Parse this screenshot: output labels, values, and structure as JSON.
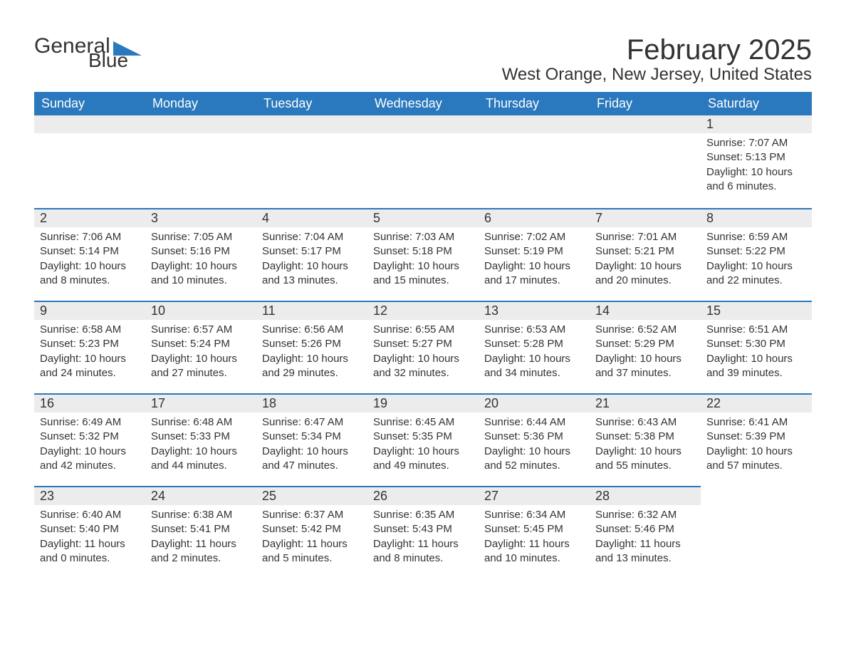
{
  "logo": {
    "word1": "General",
    "word2": "Blue"
  },
  "title": "February 2025",
  "location": "West Orange, New Jersey, United States",
  "colors": {
    "header_bg": "#2a78bd",
    "header_text": "#ffffff",
    "daynum_bg": "#ececec",
    "daynum_border": "#2a78bd",
    "body_text": "#333333",
    "page_bg": "#ffffff"
  },
  "font": {
    "family": "Arial",
    "title_size_pt": 30,
    "location_size_pt": 18,
    "header_size_pt": 14,
    "daynum_size_pt": 14,
    "body_size_pt": 11
  },
  "layout": {
    "columns": 7,
    "rows": 5,
    "first_day_column_index": 6
  },
  "weekdays": [
    "Sunday",
    "Monday",
    "Tuesday",
    "Wednesday",
    "Thursday",
    "Friday",
    "Saturday"
  ],
  "days": [
    {
      "n": 1,
      "sunrise": "7:07 AM",
      "sunset": "5:13 PM",
      "daylight": "10 hours and 6 minutes."
    },
    {
      "n": 2,
      "sunrise": "7:06 AM",
      "sunset": "5:14 PM",
      "daylight": "10 hours and 8 minutes."
    },
    {
      "n": 3,
      "sunrise": "7:05 AM",
      "sunset": "5:16 PM",
      "daylight": "10 hours and 10 minutes."
    },
    {
      "n": 4,
      "sunrise": "7:04 AM",
      "sunset": "5:17 PM",
      "daylight": "10 hours and 13 minutes."
    },
    {
      "n": 5,
      "sunrise": "7:03 AM",
      "sunset": "5:18 PM",
      "daylight": "10 hours and 15 minutes."
    },
    {
      "n": 6,
      "sunrise": "7:02 AM",
      "sunset": "5:19 PM",
      "daylight": "10 hours and 17 minutes."
    },
    {
      "n": 7,
      "sunrise": "7:01 AM",
      "sunset": "5:21 PM",
      "daylight": "10 hours and 20 minutes."
    },
    {
      "n": 8,
      "sunrise": "6:59 AM",
      "sunset": "5:22 PM",
      "daylight": "10 hours and 22 minutes."
    },
    {
      "n": 9,
      "sunrise": "6:58 AM",
      "sunset": "5:23 PM",
      "daylight": "10 hours and 24 minutes."
    },
    {
      "n": 10,
      "sunrise": "6:57 AM",
      "sunset": "5:24 PM",
      "daylight": "10 hours and 27 minutes."
    },
    {
      "n": 11,
      "sunrise": "6:56 AM",
      "sunset": "5:26 PM",
      "daylight": "10 hours and 29 minutes."
    },
    {
      "n": 12,
      "sunrise": "6:55 AM",
      "sunset": "5:27 PM",
      "daylight": "10 hours and 32 minutes."
    },
    {
      "n": 13,
      "sunrise": "6:53 AM",
      "sunset": "5:28 PM",
      "daylight": "10 hours and 34 minutes."
    },
    {
      "n": 14,
      "sunrise": "6:52 AM",
      "sunset": "5:29 PM",
      "daylight": "10 hours and 37 minutes."
    },
    {
      "n": 15,
      "sunrise": "6:51 AM",
      "sunset": "5:30 PM",
      "daylight": "10 hours and 39 minutes."
    },
    {
      "n": 16,
      "sunrise": "6:49 AM",
      "sunset": "5:32 PM",
      "daylight": "10 hours and 42 minutes."
    },
    {
      "n": 17,
      "sunrise": "6:48 AM",
      "sunset": "5:33 PM",
      "daylight": "10 hours and 44 minutes."
    },
    {
      "n": 18,
      "sunrise": "6:47 AM",
      "sunset": "5:34 PM",
      "daylight": "10 hours and 47 minutes."
    },
    {
      "n": 19,
      "sunrise": "6:45 AM",
      "sunset": "5:35 PM",
      "daylight": "10 hours and 49 minutes."
    },
    {
      "n": 20,
      "sunrise": "6:44 AM",
      "sunset": "5:36 PM",
      "daylight": "10 hours and 52 minutes."
    },
    {
      "n": 21,
      "sunrise": "6:43 AM",
      "sunset": "5:38 PM",
      "daylight": "10 hours and 55 minutes."
    },
    {
      "n": 22,
      "sunrise": "6:41 AM",
      "sunset": "5:39 PM",
      "daylight": "10 hours and 57 minutes."
    },
    {
      "n": 23,
      "sunrise": "6:40 AM",
      "sunset": "5:40 PM",
      "daylight": "11 hours and 0 minutes."
    },
    {
      "n": 24,
      "sunrise": "6:38 AM",
      "sunset": "5:41 PM",
      "daylight": "11 hours and 2 minutes."
    },
    {
      "n": 25,
      "sunrise": "6:37 AM",
      "sunset": "5:42 PM",
      "daylight": "11 hours and 5 minutes."
    },
    {
      "n": 26,
      "sunrise": "6:35 AM",
      "sunset": "5:43 PM",
      "daylight": "11 hours and 8 minutes."
    },
    {
      "n": 27,
      "sunrise": "6:34 AM",
      "sunset": "5:45 PM",
      "daylight": "11 hours and 10 minutes."
    },
    {
      "n": 28,
      "sunrise": "6:32 AM",
      "sunset": "5:46 PM",
      "daylight": "11 hours and 13 minutes."
    }
  ],
  "labels": {
    "sunrise": "Sunrise:",
    "sunset": "Sunset:",
    "daylight": "Daylight:"
  }
}
